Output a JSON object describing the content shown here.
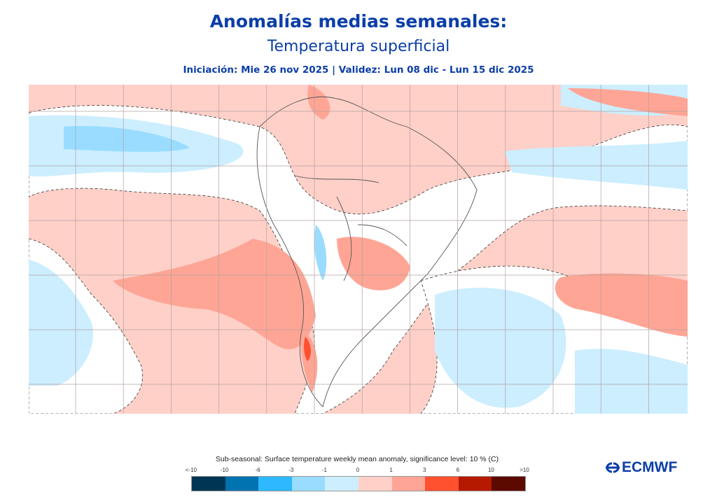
{
  "header": {
    "title": "Anomalías medias semanales:",
    "subtitle": "Temperatura superficial",
    "info": "Iniciación:  Mie 26 nov 2025 | Validez: Lun 08 dic - Lun 15 dic 2025"
  },
  "legend": {
    "title": "Sub-seasonal: Surface temperature weekly mean anomaly, significance level: 10 % (C)",
    "ticks": [
      "<-10",
      "-10",
      "-6",
      "-3",
      "-1",
      "0",
      "1",
      "3",
      "6",
      "10",
      ">10"
    ],
    "colors": [
      "#003654",
      "#0073b0",
      "#2db8ff",
      "#99dcff",
      "#cceeff",
      "#ffd0c8",
      "#ffa595",
      "#ff5030",
      "#b51a00",
      "#5c0a00"
    ]
  },
  "logo": {
    "text": "ECMWF"
  },
  "colors": {
    "brand": "#0b3ea8",
    "grid": "#b0a0a0",
    "land_border": "#555555"
  }
}
